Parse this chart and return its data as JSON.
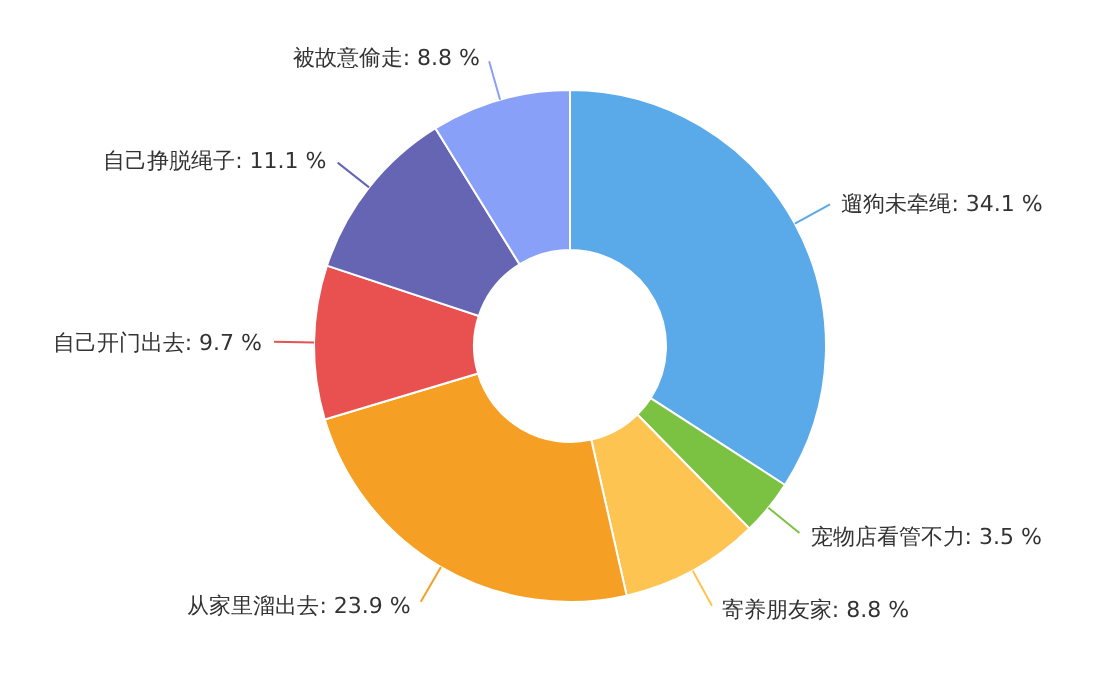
{
  "chart_data": {
    "type": "donut",
    "categories": [
      "遛狗未牵绳",
      "宠物店看管不力",
      "寄养朋友家",
      "从家里溜出去",
      "自己开门出去",
      "自己挣脱绳子",
      "被故意偷走"
    ],
    "values": [
      34.1,
      3.5,
      8.8,
      23.9,
      9.7,
      11.1,
      8.8
    ],
    "colors": [
      "#5aa9e8",
      "#7cc242",
      "#fdc451",
      "#f5a024",
      "#e95050",
      "#6565b3",
      "#88a0f8"
    ],
    "value_labels": [
      ": 34.1 %",
      ": 3.5 %",
      ": 8.8 %",
      ": 23.9 %",
      ": 9.7 %",
      ": 11.1 %",
      ": 8.8 %"
    ],
    "legend": false
  }
}
